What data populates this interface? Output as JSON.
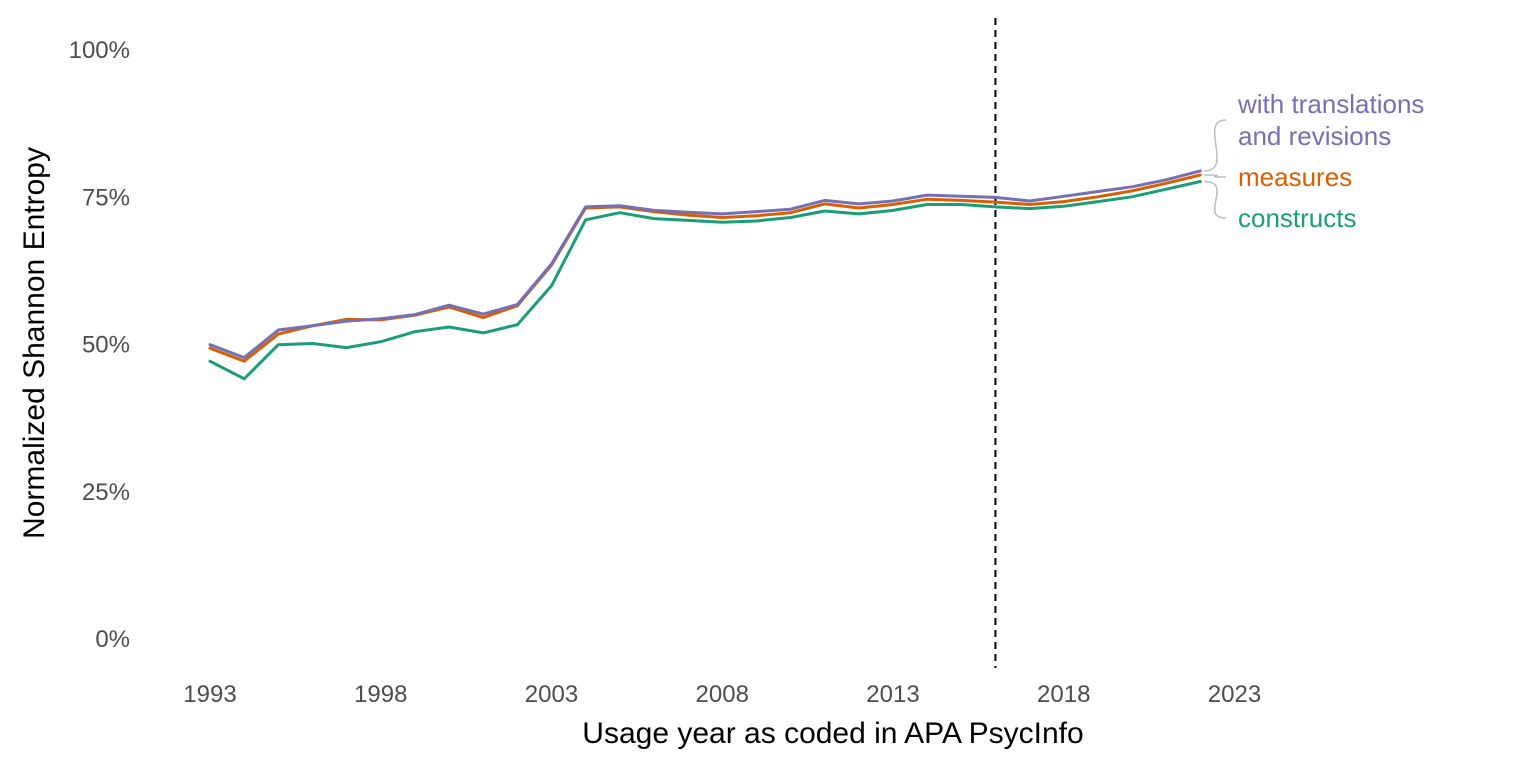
{
  "chart_data": {
    "type": "line",
    "xlabel": "Usage year as coded in APA PsycInfo",
    "ylabel": "Normalized Shannon Entropy",
    "xlim": [
      1992,
      2025
    ],
    "ylim": [
      -5,
      105
    ],
    "x_ticks": [
      1993,
      1998,
      2003,
      2008,
      2013,
      2018,
      2023
    ],
    "y_ticks": [
      0,
      25,
      50,
      75,
      100
    ],
    "y_tick_labels": [
      "0%",
      "25%",
      "50%",
      "75%",
      "100%"
    ],
    "grid": false,
    "reference_line": {
      "x": 2016,
      "style": "dashed",
      "color": "#000000"
    },
    "x": [
      1993,
      1994,
      1995,
      1996,
      1997,
      1998,
      1999,
      2000,
      2001,
      2002,
      2003,
      2004,
      2005,
      2006,
      2007,
      2008,
      2009,
      2010,
      2011,
      2012,
      2013,
      2014,
      2015,
      2016,
      2017,
      2018,
      2019,
      2020,
      2021,
      2022
    ],
    "series": [
      {
        "name": "with translations and revisions",
        "label_lines": [
          "with translations",
          "and revisions"
        ],
        "color": "#7570b3",
        "values": [
          49.8,
          47.6,
          52.3,
          53.0,
          53.8,
          54.2,
          54.9,
          56.5,
          55.0,
          56.6,
          63.5,
          73.2,
          73.4,
          72.6,
          72.3,
          72.0,
          72.4,
          72.8,
          74.3,
          73.7,
          74.2,
          75.2,
          75.0,
          74.8,
          74.2,
          75.0,
          75.8,
          76.6,
          77.8,
          79.3
        ]
      },
      {
        "name": "measures",
        "label_lines": [
          "measures"
        ],
        "color": "#d95f02",
        "values": [
          49.2,
          47.0,
          51.6,
          53.0,
          54.1,
          54.0,
          54.8,
          56.2,
          54.4,
          56.4,
          63.3,
          73.0,
          73.2,
          72.4,
          71.8,
          71.4,
          71.7,
          72.2,
          73.7,
          73.0,
          73.6,
          74.5,
          74.3,
          74.0,
          73.6,
          74.1,
          74.9,
          75.9,
          77.2,
          78.6
        ]
      },
      {
        "name": "constructs",
        "label_lines": [
          "constructs"
        ],
        "color": "#1b9e77",
        "values": [
          47.0,
          44.0,
          49.8,
          50.0,
          49.3,
          50.3,
          52.0,
          52.8,
          51.8,
          53.2,
          59.8,
          71.0,
          72.2,
          71.2,
          70.9,
          70.6,
          70.8,
          71.4,
          72.5,
          72.0,
          72.6,
          73.6,
          73.6,
          73.2,
          72.9,
          73.3,
          74.1,
          74.9,
          76.2,
          77.5
        ]
      }
    ]
  }
}
